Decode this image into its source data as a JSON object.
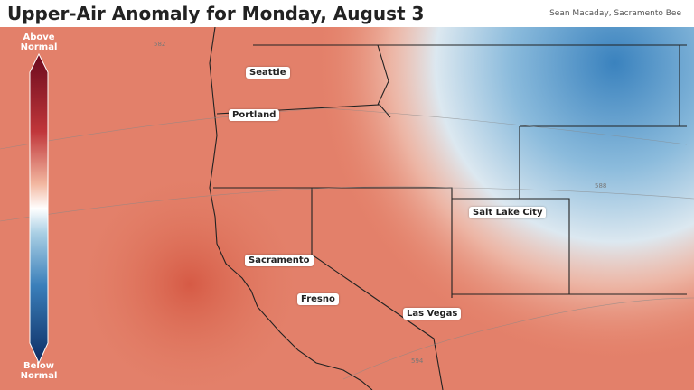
{
  "header": {
    "title": "Upper-Air Anomaly for Monday, August 3",
    "credit": "Sean Macaday, Sacramento Bee"
  },
  "legend": {
    "top": "Above Normal",
    "bottom": "Below Normal"
  },
  "cities": [
    "Seattle",
    "Portland",
    "Salt Lake City",
    "Sacramento",
    "Fresno",
    "Las Vegas"
  ],
  "contour_labels": [
    "582",
    "588",
    "594"
  ]
}
